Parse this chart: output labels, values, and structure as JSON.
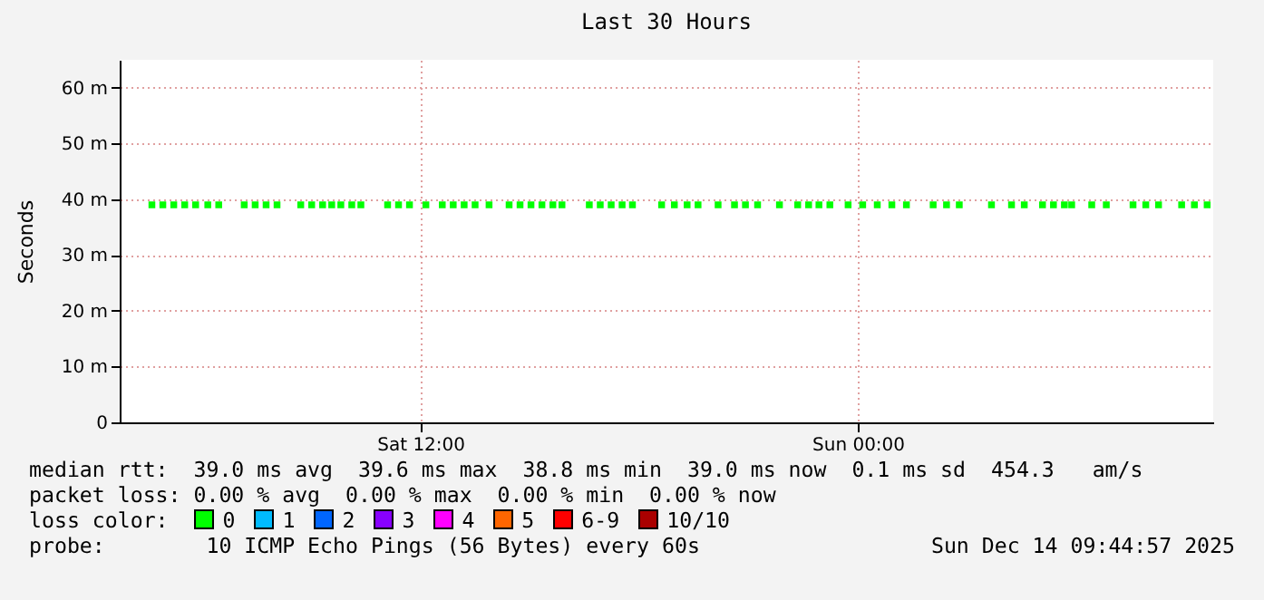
{
  "chart_data": {
    "type": "scatter",
    "title": "Last 30 Hours",
    "ylabel": "Seconds",
    "marker": "square",
    "grid": true,
    "xlim": [
      "2025-12-13T03:45",
      "2025-12-14T09:45"
    ],
    "xticks": [
      {
        "value": "2025-12-13T12:00",
        "label": "Sat 12:00"
      },
      {
        "value": "2025-12-14T00:00",
        "label": "Sun 00:00"
      }
    ],
    "ylim": [
      0,
      65
    ],
    "yticks": [
      0,
      {
        "value": 10,
        "label": "10 m"
      },
      {
        "value": 20,
        "label": "20 m"
      },
      {
        "value": 30,
        "label": "30 m"
      },
      {
        "value": 40,
        "label": "40 m"
      },
      {
        "value": 50,
        "label": "50 m"
      },
      {
        "value": 60,
        "label": "60 m"
      }
    ],
    "x": [
      "2025-12-13T04:38",
      "2025-12-13T04:56",
      "2025-12-13T05:14",
      "2025-12-13T05:32",
      "2025-12-13T05:50",
      "2025-12-13T06:10",
      "2025-12-13T06:28",
      "2025-12-13T07:10",
      "2025-12-13T07:28",
      "2025-12-13T07:46",
      "2025-12-13T08:04",
      "2025-12-13T08:43",
      "2025-12-13T09:01",
      "2025-12-13T09:19",
      "2025-12-13T09:34",
      "2025-12-13T09:49",
      "2025-12-13T10:07",
      "2025-12-13T10:22",
      "2025-12-13T11:06",
      "2025-12-13T11:24",
      "2025-12-13T11:42",
      "2025-12-13T12:09",
      "2025-12-13T12:36",
      "2025-12-13T12:54",
      "2025-12-13T13:12",
      "2025-12-13T13:30",
      "2025-12-13T13:53",
      "2025-12-13T14:26",
      "2025-12-13T14:44",
      "2025-12-13T15:02",
      "2025-12-13T15:20",
      "2025-12-13T15:38",
      "2025-12-13T15:53",
      "2025-12-13T16:38",
      "2025-12-13T16:56",
      "2025-12-13T17:14",
      "2025-12-13T17:32",
      "2025-12-13T17:49",
      "2025-12-13T18:37",
      "2025-12-13T18:58",
      "2025-12-13T19:19",
      "2025-12-13T19:37",
      "2025-12-13T20:10",
      "2025-12-13T20:37",
      "2025-12-13T20:55",
      "2025-12-13T21:15",
      "2025-12-13T21:51",
      "2025-12-13T22:21",
      "2025-12-13T22:39",
      "2025-12-13T22:56",
      "2025-12-13T23:14",
      "2025-12-13T23:44",
      "2025-12-14T00:08",
      "2025-12-14T00:32",
      "2025-12-14T00:56",
      "2025-12-14T01:20",
      "2025-12-14T02:04",
      "2025-12-14T02:26",
      "2025-12-14T02:47",
      "2025-12-14T03:40",
      "2025-12-14T04:13",
      "2025-12-14T04:34",
      "2025-12-14T05:04",
      "2025-12-14T05:22",
      "2025-12-14T05:40",
      "2025-12-14T05:52",
      "2025-12-14T06:25",
      "2025-12-14T06:49",
      "2025-12-14T07:33",
      "2025-12-14T07:54",
      "2025-12-14T08:15",
      "2025-12-14T08:53",
      "2025-12-14T09:14",
      "2025-12-14T09:35"
    ],
    "series": [
      {
        "color": "#00ff00",
        "values": [
          39,
          39,
          39,
          39,
          39,
          39,
          39,
          39,
          39,
          39,
          39,
          39,
          39,
          39,
          39,
          39,
          39,
          39,
          39,
          39,
          39,
          39,
          39,
          39,
          39,
          39,
          39,
          39,
          39,
          39,
          39,
          39,
          39,
          39,
          39,
          39,
          39,
          39,
          39,
          39,
          39,
          39,
          39,
          39,
          39,
          39,
          39,
          39,
          39,
          39,
          39,
          39,
          39,
          39,
          39,
          39,
          39,
          39,
          39,
          39,
          39,
          39,
          39,
          39,
          39,
          39,
          39,
          39,
          39,
          39,
          39,
          39,
          39,
          39
        ]
      }
    ],
    "annotations": [
      "median rtt:  39.0 ms avg  39.6 ms max  38.8 ms min  39.0 ms now  0.1 ms sd  454.3   am/s",
      "packet loss: 0.00 % avg  0.00 % max  0.00 % min  0.00 % now",
      "loss color:  0  1  2  3  4  5  6-9  10/10",
      "probe:        10 ICMP Echo Pings (56 Bytes) every 60s",
      "Sun Dec 14 09:44:57 2025"
    ]
  }
}
